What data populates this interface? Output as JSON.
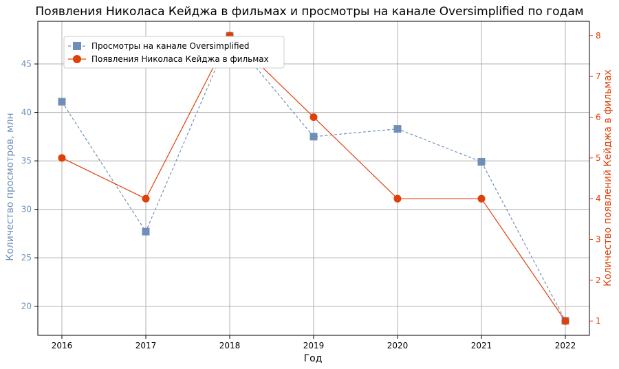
{
  "chart_data": {
    "type": "line",
    "title": "Появления Николаса Кейджа в фильмах и просмотры на канале Oversimplified по годам",
    "xlabel": "Год",
    "x": [
      2016,
      2017,
      2018,
      2019,
      2020,
      2021,
      2022
    ],
    "grid": true,
    "legend_position": "top-left",
    "series": [
      {
        "name": "Просмотры на канале Oversimplified",
        "axis": "left",
        "values": [
          41.1,
          27.7,
          47.9,
          37.5,
          38.3,
          34.9,
          18.5
        ],
        "color": "#6f8fb8",
        "marker": "square",
        "line_style": "dashed"
      },
      {
        "name": "Появления Николаса Кейджа в фильмах",
        "axis": "right",
        "values": [
          5,
          4,
          8,
          6,
          4,
          4,
          1
        ],
        "color": "#e0400a",
        "marker": "circle",
        "line_style": "solid"
      }
    ],
    "y_left": {
      "label": "Количество просмотров, млн",
      "ticks": [
        20,
        25,
        30,
        35,
        40,
        45
      ],
      "ylim": [
        17.0,
        49.4
      ],
      "color": "#6f8fb8"
    },
    "y_right": {
      "label": "Количество появлений Кейджа в фильмах",
      "ticks": [
        1,
        2,
        3,
        4,
        5,
        6,
        7,
        8
      ],
      "ylim": [
        0.65,
        8.35
      ],
      "color": "#e0400a"
    }
  }
}
